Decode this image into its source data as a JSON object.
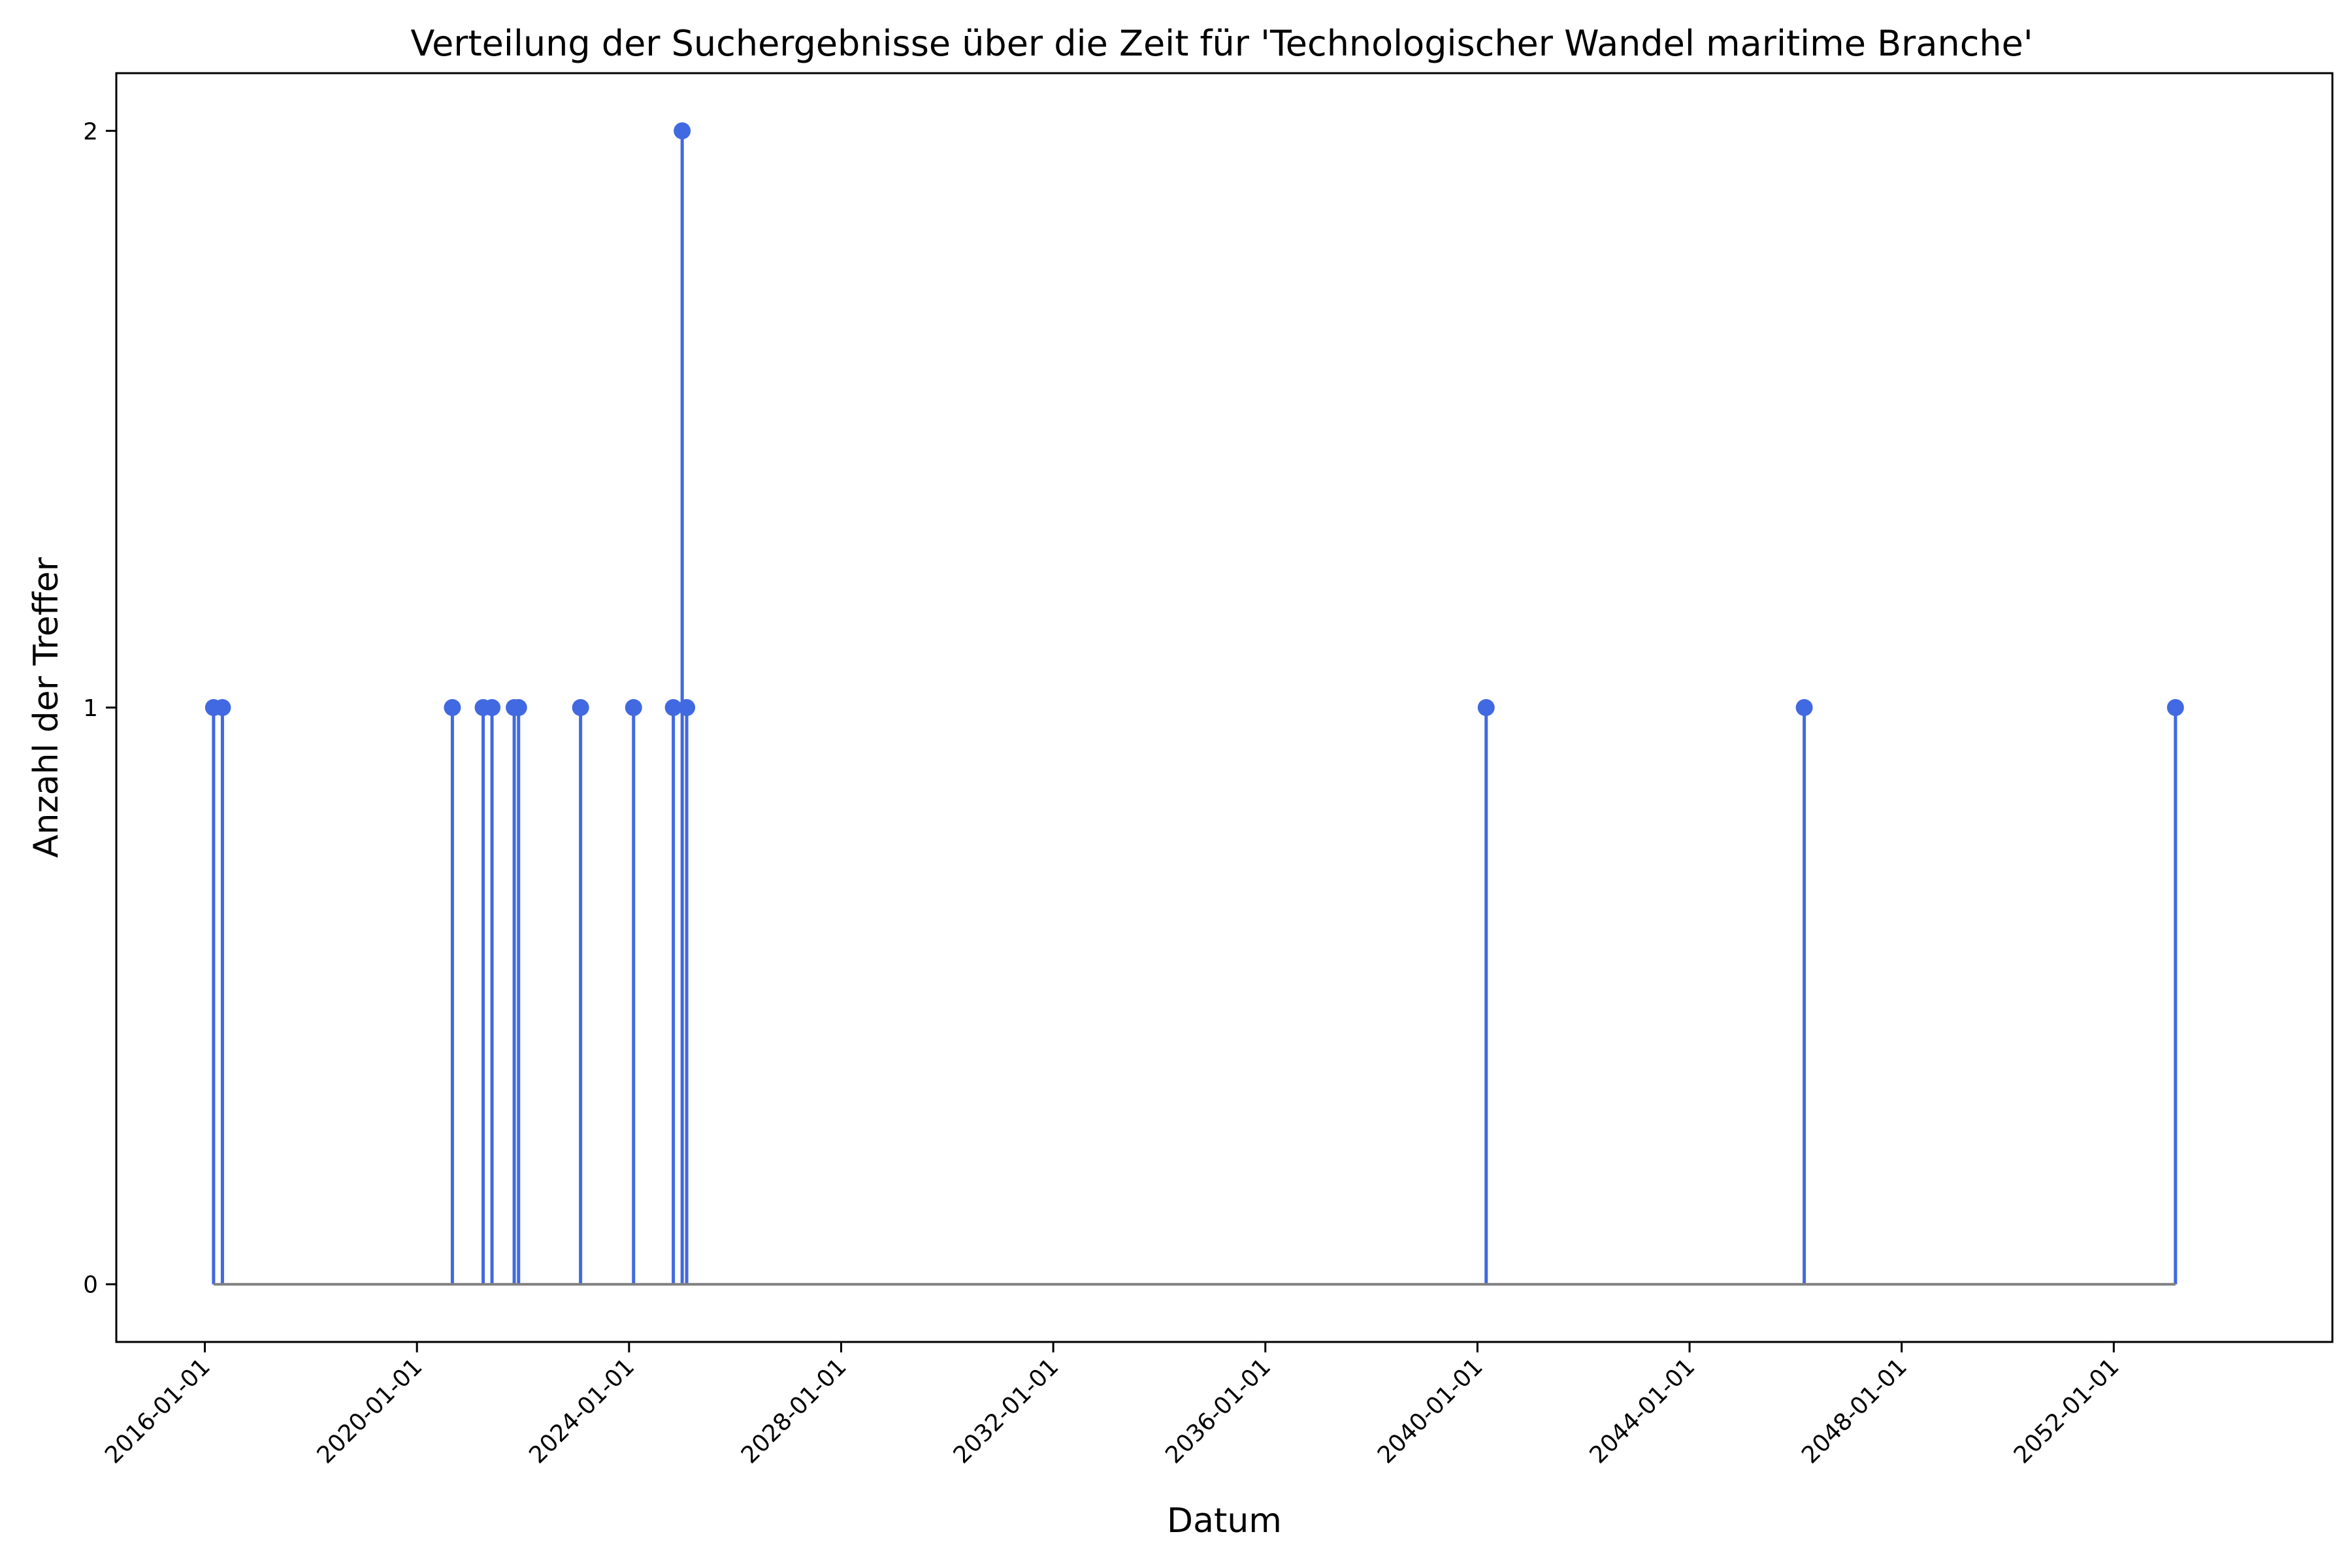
{
  "chart_data": {
    "type": "stem",
    "title": "Verteilung der Suchergebnisse über die Zeit für 'Technologischer Wandel maritime Branche'",
    "xlabel": "Datum",
    "ylabel": "Anzahl der Treffer",
    "x_type": "date",
    "xlim": [
      "2014-05-01",
      "2056-02-15"
    ],
    "ylim": [
      -0.1,
      2.1
    ],
    "x_ticks": [
      "2016-01-01",
      "2020-01-01",
      "2024-01-01",
      "2028-01-01",
      "2032-01-01",
      "2036-01-01",
      "2040-01-01",
      "2044-01-01",
      "2048-01-01",
      "2052-01-01"
    ],
    "y_ticks": [
      0,
      1,
      2
    ],
    "grid": false,
    "baseline": 0,
    "colors": {
      "stem": "#4169E1",
      "marker": "#4169E1",
      "baseline": "#808080"
    },
    "points": [
      {
        "x": "2016-03-01",
        "y": 1
      },
      {
        "x": "2016-05-01",
        "y": 1
      },
      {
        "x": "2020-09-01",
        "y": 1
      },
      {
        "x": "2021-04-01",
        "y": 1
      },
      {
        "x": "2021-06-01",
        "y": 1
      },
      {
        "x": "2021-11-01",
        "y": 1
      },
      {
        "x": "2021-12-01",
        "y": 1
      },
      {
        "x": "2023-02-01",
        "y": 1
      },
      {
        "x": "2024-02-01",
        "y": 1
      },
      {
        "x": "2024-11-01",
        "y": 1
      },
      {
        "x": "2025-01-01",
        "y": 2
      },
      {
        "x": "2025-02-01",
        "y": 1
      },
      {
        "x": "2040-03-01",
        "y": 1
      },
      {
        "x": "2046-03-01",
        "y": 1
      },
      {
        "x": "2053-03-01",
        "y": 1
      }
    ]
  }
}
